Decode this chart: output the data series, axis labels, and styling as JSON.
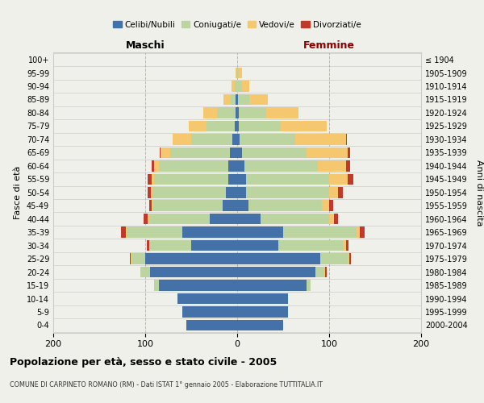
{
  "age_groups": [
    "0-4",
    "5-9",
    "10-14",
    "15-19",
    "20-24",
    "25-29",
    "30-34",
    "35-39",
    "40-44",
    "45-49",
    "50-54",
    "55-59",
    "60-64",
    "65-69",
    "70-74",
    "75-79",
    "80-84",
    "85-89",
    "90-94",
    "95-99",
    "100+"
  ],
  "birth_years": [
    "2000-2004",
    "1995-1999",
    "1990-1994",
    "1985-1989",
    "1980-1984",
    "1975-1979",
    "1970-1974",
    "1965-1969",
    "1960-1964",
    "1955-1959",
    "1950-1954",
    "1945-1949",
    "1940-1944",
    "1935-1939",
    "1930-1934",
    "1925-1929",
    "1920-1924",
    "1915-1919",
    "1910-1914",
    "1905-1909",
    "≤ 1904"
  ],
  "male": {
    "celibi": [
      55,
      60,
      65,
      85,
      95,
      100,
      50,
      60,
      30,
      16,
      12,
      10,
      10,
      8,
      5,
      3,
      2,
      2,
      0,
      0,
      0
    ],
    "coniugati": [
      0,
      0,
      0,
      5,
      10,
      15,
      45,
      60,
      65,
      75,
      80,
      80,
      75,
      65,
      45,
      30,
      20,
      5,
      3,
      1,
      0
    ],
    "vedovi": [
      0,
      0,
      0,
      0,
      0,
      1,
      1,
      1,
      2,
      2,
      2,
      3,
      5,
      10,
      20,
      20,
      15,
      8,
      3,
      1,
      0
    ],
    "divorziati": [
      0,
      0,
      0,
      0,
      0,
      1,
      2,
      5,
      5,
      3,
      3,
      4,
      3,
      1,
      0,
      0,
      0,
      0,
      0,
      0,
      0
    ]
  },
  "female": {
    "nubili": [
      50,
      55,
      55,
      75,
      85,
      90,
      45,
      50,
      25,
      12,
      10,
      10,
      8,
      5,
      3,
      2,
      2,
      1,
      0,
      0,
      0
    ],
    "coniugate": [
      0,
      0,
      0,
      5,
      10,
      30,
      70,
      80,
      75,
      80,
      90,
      90,
      80,
      70,
      60,
      45,
      30,
      12,
      5,
      2,
      0
    ],
    "vedove": [
      0,
      0,
      0,
      0,
      1,
      2,
      3,
      3,
      5,
      8,
      10,
      20,
      30,
      45,
      55,
      50,
      35,
      20,
      8,
      3,
      0
    ],
    "divorziate": [
      0,
      0,
      0,
      0,
      1,
      2,
      3,
      6,
      5,
      4,
      5,
      6,
      5,
      3,
      1,
      0,
      0,
      0,
      0,
      0,
      0
    ]
  },
  "colors": {
    "celibi": "#4472a8",
    "coniugati": "#bcd4a0",
    "vedovi": "#f5c76e",
    "divorziati": "#c0392b"
  },
  "xlim": 200,
  "title": "Popolazione per età, sesso e stato civile - 2005",
  "subtitle": "COMUNE DI CARPINETO ROMANO (RM) - Dati ISTAT 1° gennaio 2005 - Elaborazione TUTTITALIA.IT",
  "ylabel_left": "Fasce di età",
  "ylabel_right": "Anni di nascita",
  "xlabel_left": "Maschi",
  "xlabel_right": "Femmine",
  "background_color": "#f0f0eb"
}
